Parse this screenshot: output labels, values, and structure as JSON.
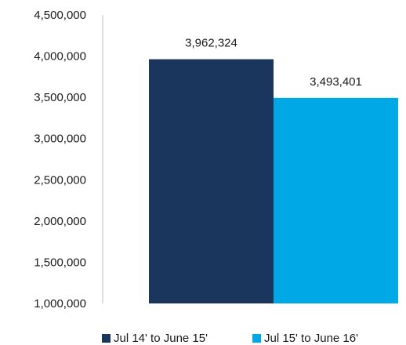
{
  "chart_data": {
    "type": "bar",
    "title": "",
    "xlabel": "",
    "ylabel": "",
    "ylim": [
      1000000,
      4500000
    ],
    "yticks": [
      1000000,
      1500000,
      2000000,
      2500000,
      3000000,
      3500000,
      4000000,
      4500000
    ],
    "ytick_labels": [
      "1,000,000",
      "1,500,000",
      "2,000,000",
      "2,500,000",
      "3,000,000",
      "3,500,000",
      "4,000,000",
      "4,500,000"
    ],
    "grid": false,
    "legend_position": "bottom",
    "series": [
      {
        "name": "Jul 14' to June 15'",
        "values": [
          3962324
        ],
        "label": "3,962,324",
        "color": "#1b365d"
      },
      {
        "name": "Jul 15' to June 16'",
        "values": [
          3493401
        ],
        "label": "3,493,401",
        "color": "#00a9e6"
      }
    ],
    "axis_color": "#bfbfbf"
  }
}
